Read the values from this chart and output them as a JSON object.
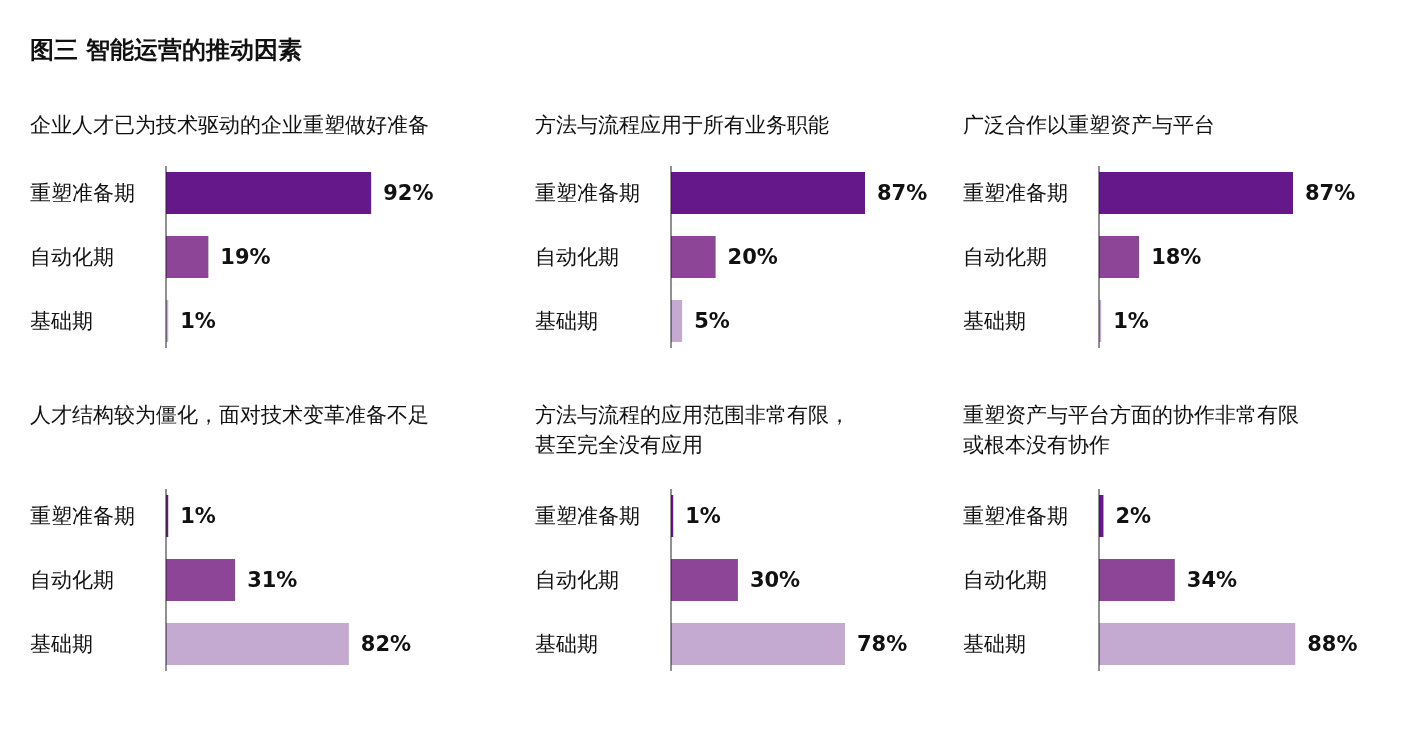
{
  "chart_data": [
    {
      "type": "bar",
      "orientation": "horizontal",
      "title": "图三 智能运营的推动因素",
      "subtitle": "企业人才已为技术驱动的企业重塑做好准备",
      "categories": [
        "重塑准备期",
        "自动化期",
        "基础期"
      ],
      "values": [
        92,
        19,
        1
      ],
      "colors": [
        "#64188a",
        "#8c4597",
        "#c4a9d1"
      ],
      "value_labels": [
        "92%",
        "19%",
        "1%"
      ],
      "tick_labels": "y"
    },
    {
      "type": "bar",
      "orientation": "horizontal",
      "subtitle": "方法与流程应用于所有业务职能",
      "categories": [
        "重塑准备期",
        "自动化期",
        "基础期"
      ],
      "values": [
        87,
        20,
        5
      ],
      "colors": [
        "#64188a",
        "#8c4597",
        "#c4a9d1"
      ],
      "value_labels": [
        "87%",
        "20%",
        "5%"
      ],
      "tick_labels": "y"
    },
    {
      "type": "bar",
      "orientation": "horizontal",
      "subtitle": "广泛合作以重塑资产与平台",
      "categories": [
        "重塑准备期",
        "自动化期",
        "基础期"
      ],
      "values": [
        87,
        18,
        1
      ],
      "colors": [
        "#64188a",
        "#8c4597",
        "#c4a9d1"
      ],
      "value_labels": [
        "87%",
        "18%",
        "1%"
      ],
      "tick_labels": "y"
    },
    {
      "type": "bar",
      "orientation": "horizontal",
      "subtitle": "人才结构较为僵化，面对技术变革准备不足",
      "categories": [
        "重塑准备期",
        "自动化期",
        "基础期"
      ],
      "values": [
        1,
        31,
        82
      ],
      "colors": [
        "#64188a",
        "#8c4597",
        "#c4a9d1"
      ],
      "value_labels": [
        "1%",
        "31%",
        "82%"
      ],
      "tick_labels": "y"
    },
    {
      "type": "bar",
      "orientation": "horizontal",
      "subtitle": "方法与流程的应用范围非常有限，甚至完全没有应用",
      "categories": [
        "重塑准备期",
        "自动化期",
        "基础期"
      ],
      "values": [
        1,
        30,
        78
      ],
      "colors": [
        "#64188a",
        "#8c4597",
        "#c4a9d1"
      ],
      "value_labels": [
        "1%",
        "30%",
        "78%"
      ],
      "tick_labels": "y"
    },
    {
      "type": "bar",
      "orientation": "horizontal",
      "subtitle": "重塑资产与平台方面的协作非常有限或根本没有协作",
      "categories": [
        "重塑准备期",
        "自动化期",
        "基础期"
      ],
      "values": [
        2,
        34,
        88
      ],
      "colors": [
        "#64188a",
        "#8c4597",
        "#c4a9d1"
      ],
      "value_labels": [
        "2%",
        "34%",
        "88%"
      ],
      "tick_labels": "y"
    }
  ]
}
